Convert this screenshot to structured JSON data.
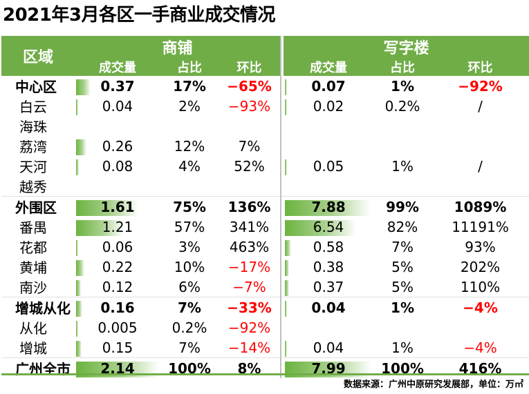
{
  "title": "2021年3月各区一手商业成交情况",
  "header": {
    "region": "区域",
    "group_shop": "商铺",
    "group_office": "写字楼",
    "volume": "成交量",
    "share": "占比",
    "mom": "环比"
  },
  "footer": "数据来源：广州中原研究发展部，单位：万㎡",
  "colors": {
    "header_bg": "#70ad47",
    "negative": "#ff0000",
    "bar": "#6cb33f"
  },
  "chart_data": {
    "type": "table",
    "title": "2021年3月各区一手商业成交情况",
    "columns": [
      "区域",
      "商铺 成交量",
      "商铺 占比",
      "商铺 环比",
      "写字楼 成交量",
      "写字楼 占比",
      "写字楼 环比"
    ],
    "bar_scale_max": {
      "shop": 2.14,
      "office": 7.99
    },
    "rows": [
      {
        "region": "中心区",
        "total": true,
        "shop_vol": "0.37",
        "shop_vol_value": 0.37,
        "shop_share": "17%",
        "shop_mom": "−65%",
        "shop_mom_neg": true,
        "office_vol": "0.07",
        "office_vol_value": 0.07,
        "office_share": "1%",
        "office_mom": "−92%",
        "office_mom_neg": true
      },
      {
        "region": "白云",
        "shop_vol": "0.04",
        "shop_vol_value": 0.04,
        "shop_share": "2%",
        "shop_mom": "−93%",
        "shop_mom_neg": true,
        "office_vol": "0.02",
        "office_vol_value": 0.02,
        "office_share": "0.2%",
        "office_mom": "/"
      },
      {
        "region": "海珠",
        "shop_vol": "",
        "shop_vol_value": 0,
        "shop_share": "",
        "shop_mom": "",
        "office_vol": "",
        "office_vol_value": 0,
        "office_share": "",
        "office_mom": ""
      },
      {
        "region": "荔湾",
        "shop_vol": "0.26",
        "shop_vol_value": 0.26,
        "shop_share": "12%",
        "shop_mom": "7%",
        "office_vol": "",
        "office_vol_value": 0,
        "office_share": "",
        "office_mom": ""
      },
      {
        "region": "天河",
        "shop_vol": "0.08",
        "shop_vol_value": 0.08,
        "shop_share": "4%",
        "shop_mom": "52%",
        "office_vol": "0.05",
        "office_vol_value": 0.05,
        "office_share": "1%",
        "office_mom": "/"
      },
      {
        "region": "越秀",
        "shop_vol": "",
        "shop_vol_value": 0,
        "shop_share": "",
        "shop_mom": "",
        "office_vol": "",
        "office_vol_value": 0,
        "office_share": "",
        "office_mom": ""
      },
      {
        "region": "外围区",
        "total": true,
        "shop_vol": "1.61",
        "shop_vol_value": 1.61,
        "shop_share": "75%",
        "shop_mom": "136%",
        "office_vol": "7.88",
        "office_vol_value": 7.88,
        "office_share": "99%",
        "office_mom": "1089%"
      },
      {
        "region": "番禺",
        "shop_vol": "1.21",
        "shop_vol_value": 1.21,
        "shop_share": "57%",
        "shop_mom": "341%",
        "office_vol": "6.54",
        "office_vol_value": 6.54,
        "office_share": "82%",
        "office_mom": "11191%"
      },
      {
        "region": "花都",
        "shop_vol": "0.06",
        "shop_vol_value": 0.06,
        "shop_share": "3%",
        "shop_mom": "463%",
        "office_vol": "0.58",
        "office_vol_value": 0.58,
        "office_share": "7%",
        "office_mom": "93%"
      },
      {
        "region": "黄埔",
        "shop_vol": "0.22",
        "shop_vol_value": 0.22,
        "shop_share": "10%",
        "shop_mom": "−17%",
        "shop_mom_neg": true,
        "office_vol": "0.38",
        "office_vol_value": 0.38,
        "office_share": "5%",
        "office_mom": "202%"
      },
      {
        "region": "南沙",
        "shop_vol": "0.12",
        "shop_vol_value": 0.12,
        "shop_share": "6%",
        "shop_mom": "−7%",
        "shop_mom_neg": true,
        "office_vol": "0.37",
        "office_vol_value": 0.37,
        "office_share": "5%",
        "office_mom": "110%"
      },
      {
        "region": "增城从化",
        "total": true,
        "shop_vol": "0.16",
        "shop_vol_value": 0.16,
        "shop_share": "7%",
        "shop_mom": "−33%",
        "shop_mom_neg": true,
        "office_vol": "0.04",
        "office_vol_value": 0.04,
        "office_share": "1%",
        "office_mom": "−4%",
        "office_mom_neg": true
      },
      {
        "region": "从化",
        "shop_vol": "0.005",
        "shop_vol_value": 0.005,
        "shop_share": "0.2%",
        "shop_mom": "−92%",
        "shop_mom_neg": true,
        "office_vol": "",
        "office_vol_value": 0,
        "office_share": "",
        "office_mom": ""
      },
      {
        "region": "增城",
        "shop_vol": "0.15",
        "shop_vol_value": 0.15,
        "shop_share": "7%",
        "shop_mom": "−14%",
        "shop_mom_neg": true,
        "office_vol": "0.04",
        "office_vol_value": 0.04,
        "office_share": "1%",
        "office_mom": "−4%",
        "office_mom_neg": true
      },
      {
        "region": "广州全市",
        "total": true,
        "shop_vol": "2.14",
        "shop_vol_value": 2.14,
        "shop_share": "100%",
        "shop_mom": "8%",
        "office_vol": "7.99",
        "office_vol_value": 7.99,
        "office_share": "100%",
        "office_mom": "416%"
      }
    ]
  }
}
